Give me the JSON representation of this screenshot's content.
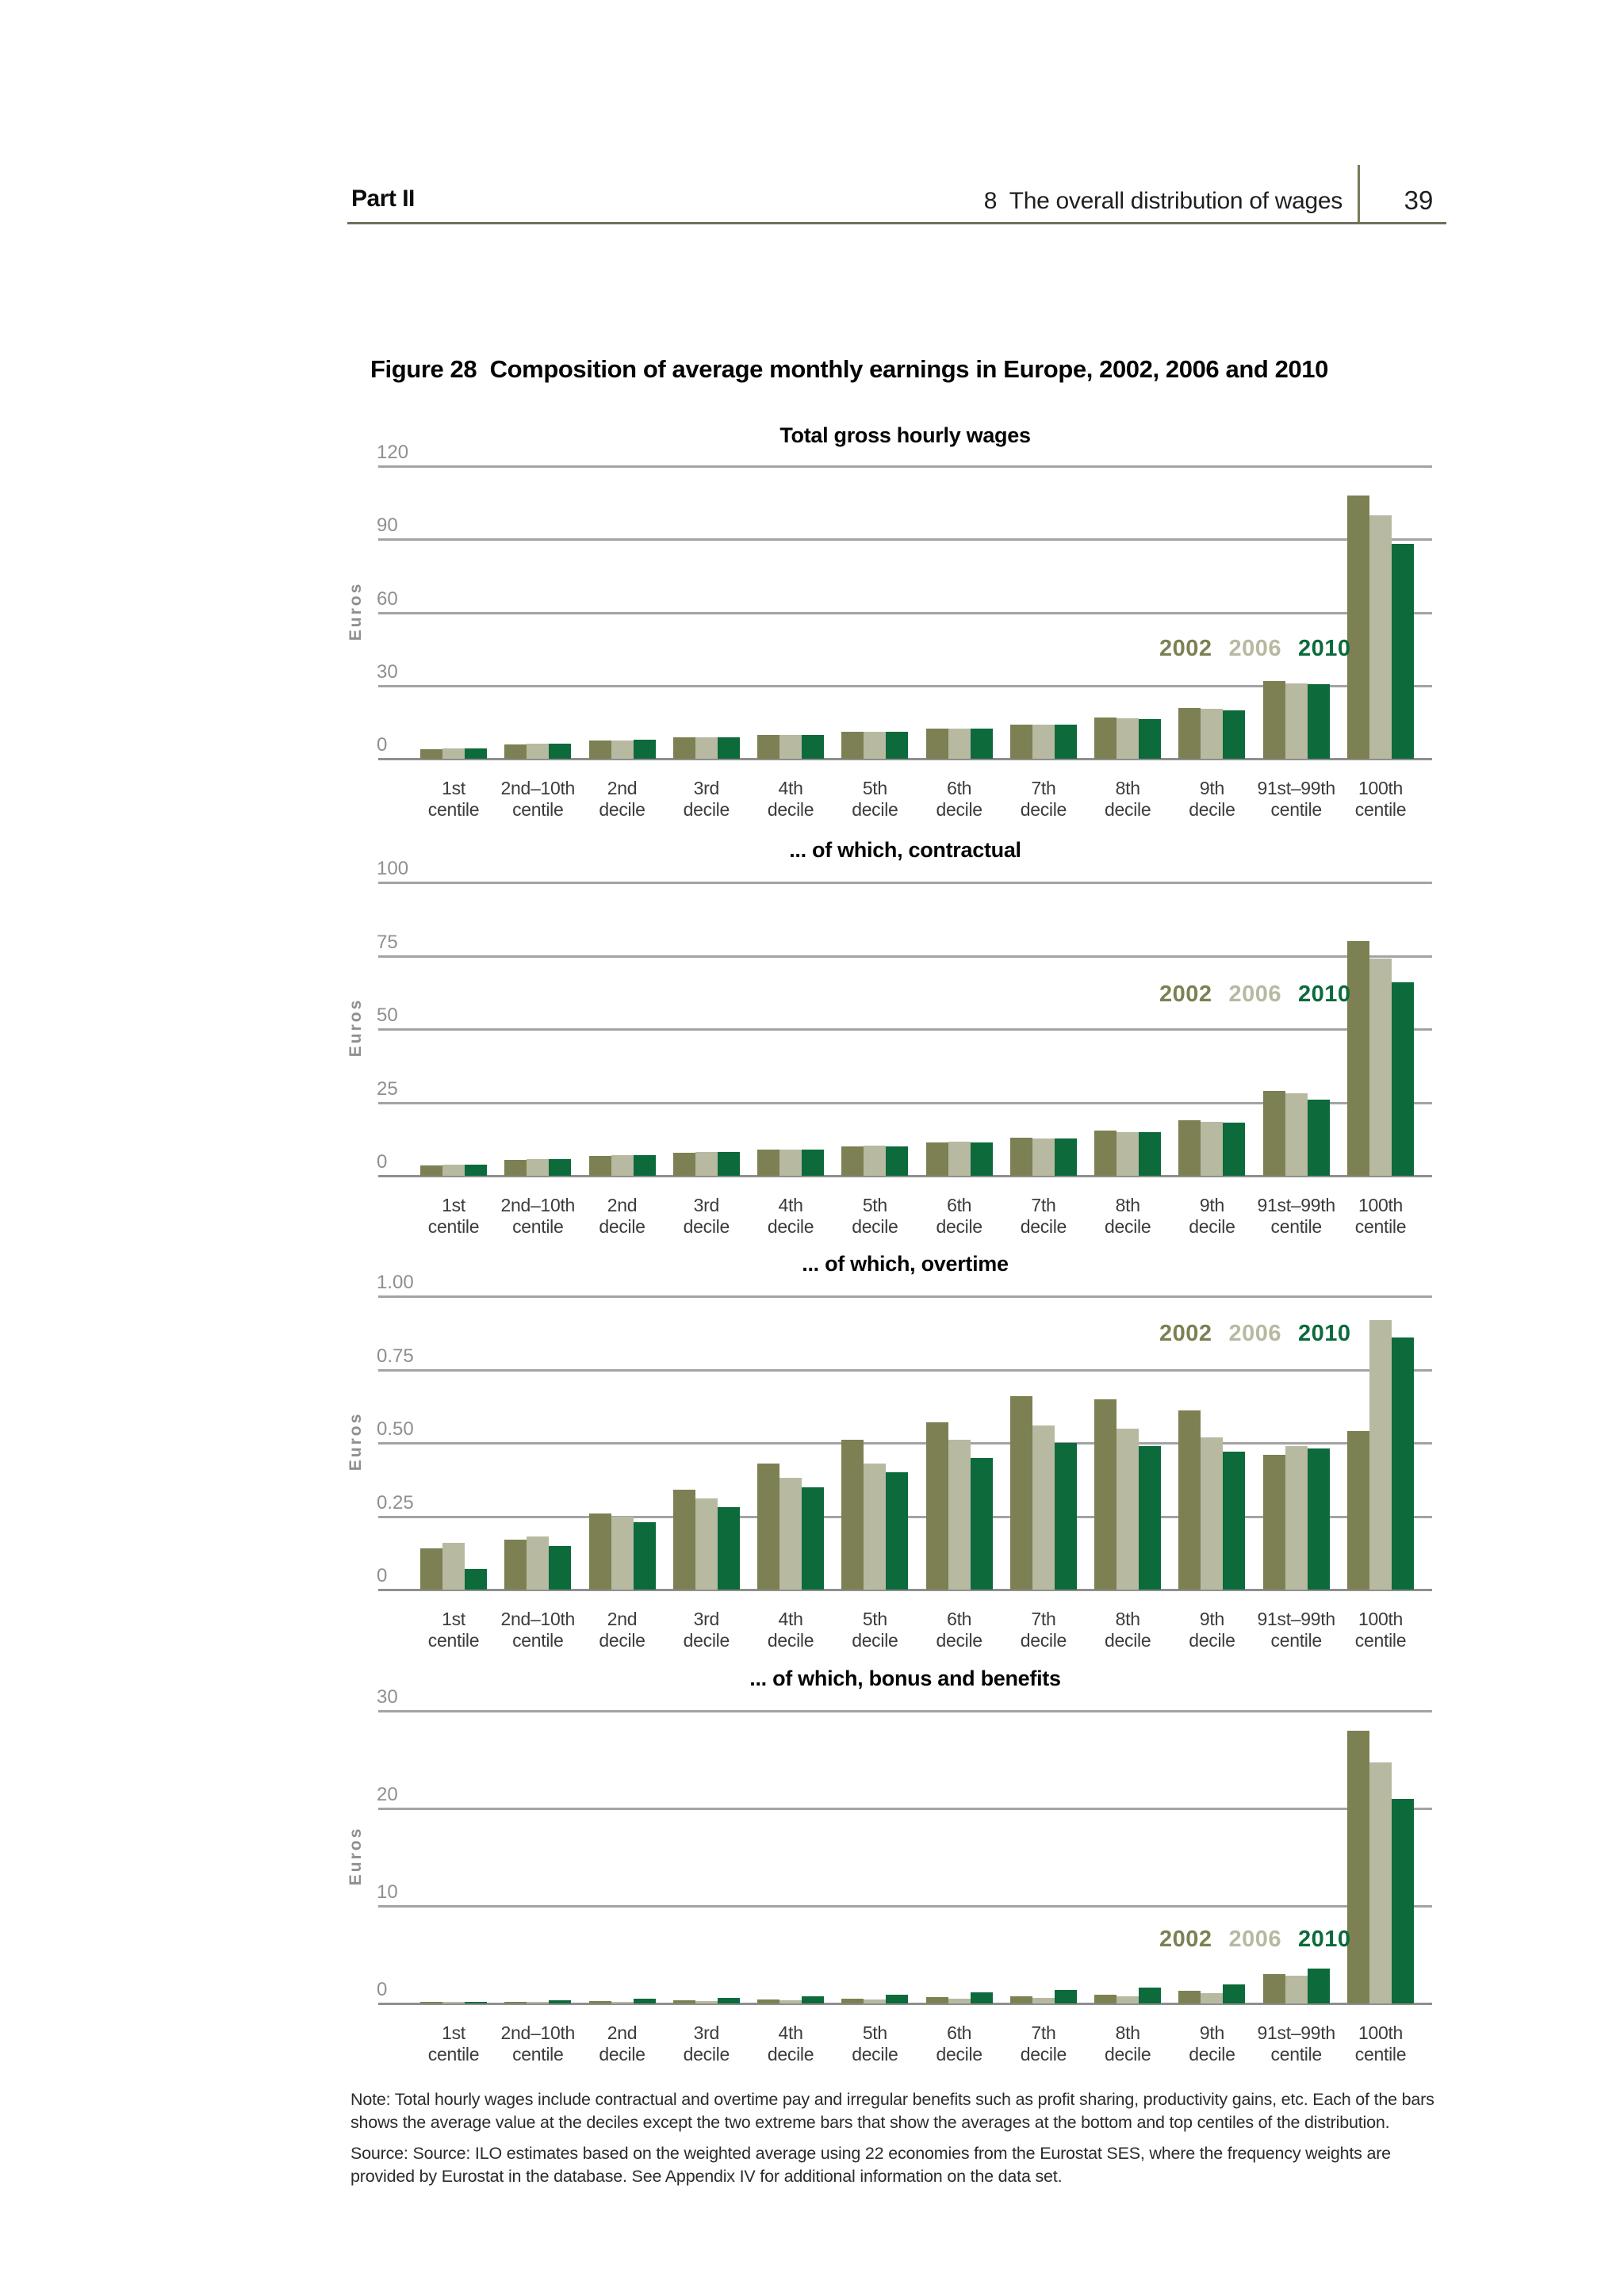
{
  "header": {
    "part": "Part II",
    "chapter": "8  The overall distribution of wages",
    "page_number": "39"
  },
  "figure_title": "Figure 28  Composition of average monthly earnings in Europe, 2002, 2006 and 2010",
  "colors": {
    "series_2002": "#7d8052",
    "series_2006": "#b8b9a1",
    "series_2010": "#0c6a3b",
    "gridline": "#a3a3a3",
    "axis_line": "#8f8f8f",
    "header_rule": "#70705c",
    "header_divider": "#7b7b58"
  },
  "note": "Note: Total hourly wages include contractual and overtime pay and irregular benefits such as profit sharing, productivity gains, etc. Each of the bars shows the average value at the deciles except the two extreme bars that show the averages at the bottom and top centiles of the distribution.",
  "source": "Source: Source: ILO estimates based on the weighted average using 22 economies from the Eurostat SES, where the frequency weights are provided by Eurostat in the database. See Appendix IV for additional information on the data set.",
  "chart_data": [
    {
      "type": "bar",
      "title": "Total gross hourly wages",
      "ylabel": "Euros",
      "ylim": [
        0,
        120
      ],
      "yticks": [
        0,
        30,
        60,
        90,
        120
      ],
      "ytick_labels": [
        "0",
        "30",
        "60",
        "90",
        "120"
      ],
      "grid": true,
      "legend_position": "right-middle",
      "categories": [
        [
          "1st",
          "centile"
        ],
        [
          "2nd–10th",
          "centile"
        ],
        [
          "2nd",
          "decile"
        ],
        [
          "3rd",
          "decile"
        ],
        [
          "4th",
          "decile"
        ],
        [
          "5th",
          "decile"
        ],
        [
          "6th",
          "decile"
        ],
        [
          "7th",
          "decile"
        ],
        [
          "8th",
          "decile"
        ],
        [
          "9th",
          "decile"
        ],
        [
          "91st–99th",
          "centile"
        ],
        [
          "100th",
          "centile"
        ]
      ],
      "series": [
        {
          "name": "2002",
          "color": "#7d8052",
          "values": [
            3.9,
            6.0,
            7.4,
            8.7,
            9.6,
            10.9,
            12.4,
            14.1,
            16.8,
            20.8,
            32.0,
            108
          ]
        },
        {
          "name": "2006",
          "color": "#b8b9a1",
          "values": [
            4.3,
            6.1,
            7.5,
            8.7,
            9.8,
            11.1,
            12.5,
            14.0,
            16.5,
            20.4,
            31.0,
            100
          ]
        },
        {
          "name": "2010",
          "color": "#0c6a3b",
          "values": [
            4.2,
            6.3,
            7.7,
            8.9,
            9.7,
            11.0,
            12.4,
            14.0,
            16.3,
            20.0,
            30.5,
            88
          ]
        }
      ]
    },
    {
      "type": "bar",
      "title": "... of which, contractual",
      "ylabel": "Euros",
      "ylim": [
        0,
        100
      ],
      "yticks": [
        0,
        25,
        50,
        75,
        100
      ],
      "ytick_labels": [
        "0",
        "25",
        "50",
        "75",
        "100"
      ],
      "grid": true,
      "legend_position": "right-middle",
      "categories": [
        [
          "1st",
          "centile"
        ],
        [
          "2nd–10th",
          "centile"
        ],
        [
          "2nd",
          "decile"
        ],
        [
          "3rd",
          "decile"
        ],
        [
          "4th",
          "decile"
        ],
        [
          "5th",
          "decile"
        ],
        [
          "6th",
          "decile"
        ],
        [
          "7th",
          "decile"
        ],
        [
          "8th",
          "decile"
        ],
        [
          "9th",
          "decile"
        ],
        [
          "91st–99th",
          "centile"
        ],
        [
          "100th",
          "centile"
        ]
      ],
      "series": [
        {
          "name": "2002",
          "color": "#7d8052",
          "values": [
            3.5,
            5.5,
            6.8,
            7.9,
            8.9,
            10.0,
            11.4,
            12.9,
            15.3,
            18.8,
            29.0,
            80
          ]
        },
        {
          "name": "2006",
          "color": "#b8b9a1",
          "values": [
            3.8,
            5.6,
            6.9,
            8.0,
            9.0,
            10.2,
            11.5,
            12.8,
            15.0,
            18.4,
            28.0,
            74
          ]
        },
        {
          "name": "2010",
          "color": "#0c6a3b",
          "values": [
            3.7,
            5.8,
            7.1,
            8.1,
            8.9,
            10.1,
            11.4,
            12.8,
            14.9,
            18.1,
            26.0,
            66
          ]
        }
      ]
    },
    {
      "type": "bar",
      "title": "... of which, overtime",
      "ylabel": "Euros",
      "ylim": [
        0,
        1.0
      ],
      "yticks": [
        0,
        0.25,
        0.5,
        0.75,
        1.0
      ],
      "ytick_labels": [
        "0",
        "0.25",
        "0.50",
        "0.75",
        "1.00"
      ],
      "grid": true,
      "legend_position": "right-top",
      "categories": [
        [
          "1st",
          "centile"
        ],
        [
          "2nd–10th",
          "centile"
        ],
        [
          "2nd",
          "decile"
        ],
        [
          "3rd",
          "decile"
        ],
        [
          "4th",
          "decile"
        ],
        [
          "5th",
          "decile"
        ],
        [
          "6th",
          "decile"
        ],
        [
          "7th",
          "decile"
        ],
        [
          "8th",
          "decile"
        ],
        [
          "9th",
          "decile"
        ],
        [
          "91st–99th",
          "centile"
        ],
        [
          "100th",
          "centile"
        ]
      ],
      "series": [
        {
          "name": "2002",
          "color": "#7d8052",
          "values": [
            0.14,
            0.17,
            0.26,
            0.34,
            0.43,
            0.51,
            0.57,
            0.66,
            0.65,
            0.61,
            0.46,
            0.54
          ]
        },
        {
          "name": "2006",
          "color": "#b8b9a1",
          "values": [
            0.16,
            0.18,
            0.25,
            0.31,
            0.38,
            0.43,
            0.51,
            0.56,
            0.55,
            0.52,
            0.49,
            0.92
          ]
        },
        {
          "name": "2010",
          "color": "#0c6a3b",
          "values": [
            0.07,
            0.15,
            0.23,
            0.28,
            0.35,
            0.4,
            0.45,
            0.5,
            0.49,
            0.47,
            0.48,
            0.86
          ]
        }
      ]
    },
    {
      "type": "bar",
      "title": "... of which, bonus and benefits",
      "ylabel": "Euros",
      "ylim": [
        0,
        30
      ],
      "yticks": [
        0,
        10,
        20,
        30
      ],
      "ytick_labels": [
        "0",
        "10",
        "20",
        "30"
      ],
      "grid": true,
      "legend_position": "right-bottom",
      "categories": [
        [
          "1st",
          "centile"
        ],
        [
          "2nd–10th",
          "centile"
        ],
        [
          "2nd",
          "decile"
        ],
        [
          "3rd",
          "decile"
        ],
        [
          "4th",
          "decile"
        ],
        [
          "5th",
          "decile"
        ],
        [
          "6th",
          "decile"
        ],
        [
          "7th",
          "decile"
        ],
        [
          "8th",
          "decile"
        ],
        [
          "9th",
          "decile"
        ],
        [
          "91st–99th",
          "centile"
        ],
        [
          "100th",
          "centile"
        ]
      ],
      "series": [
        {
          "name": "2002",
          "color": "#7d8052",
          "values": [
            0.1,
            0.18,
            0.25,
            0.32,
            0.4,
            0.5,
            0.62,
            0.72,
            0.9,
            1.3,
            3.0,
            28.0
          ]
        },
        {
          "name": "2006",
          "color": "#b8b9a1",
          "values": [
            0.06,
            0.12,
            0.2,
            0.26,
            0.32,
            0.4,
            0.5,
            0.6,
            0.75,
            1.05,
            2.85,
            24.7
          ]
        },
        {
          "name": "2010",
          "color": "#0c6a3b",
          "values": [
            0.15,
            0.3,
            0.45,
            0.6,
            0.75,
            0.9,
            1.1,
            1.35,
            1.65,
            1.95,
            3.6,
            21.0
          ]
        }
      ]
    }
  ]
}
